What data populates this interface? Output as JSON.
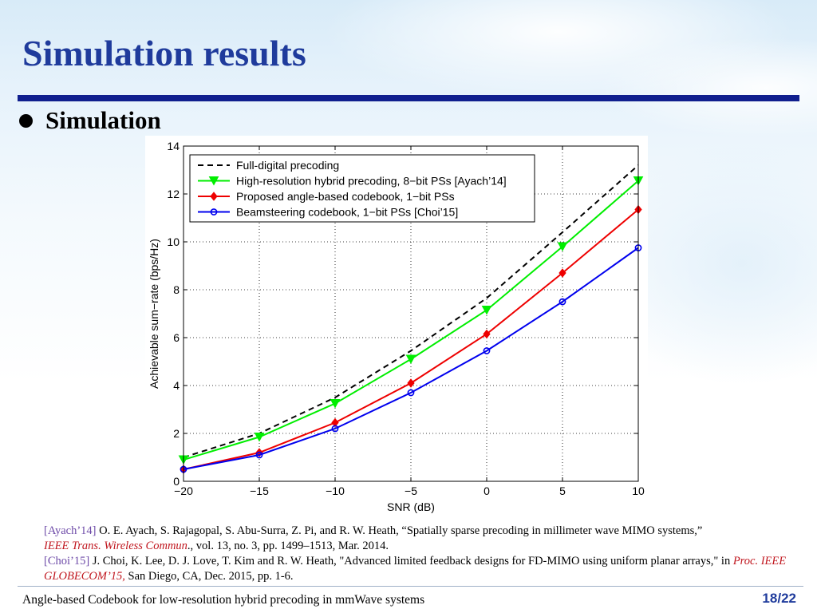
{
  "slide": {
    "title": "Simulation results",
    "bullet": "Simulation",
    "footer": "Angle-based Codebook for low-resolution hybrid precoding in mmWave systems",
    "page_current": "18",
    "page_sep": "/",
    "page_total": "22",
    "accent_color": "#1f3b9c"
  },
  "references": [
    {
      "tag": "[Ayach’14]",
      "text": " O. E. Ayach, S. Rajagopal, S. Abu-Surra, Z. Pi, and R. W. Heath, “Spatially sparse precoding in millimeter wave MIMO systems,”",
      "venue": "IEEE Trans. Wireless Commun",
      "after": "., vol. 13, no. 3, pp. 1499–1513, Mar. 2014."
    },
    {
      "tag": "[Choi’15]",
      "text": " J. Choi, K. Lee, D. J. Love, T. Kim and R. W. Heath, \"Advanced limited feedback designs for FD-MIMO using uniform  planar arrays,\" in ",
      "venue": "Proc. IEEE GLOBECOM’15,",
      "after": " San Diego, CA, Dec. 2015, pp. 1-6."
    }
  ],
  "chart_data": {
    "type": "line",
    "xlabel": "SNR (dB)",
    "ylabel": "Achievable sum−rate (bps/Hz)",
    "xlim": [
      -20,
      10
    ],
    "ylim": [
      0,
      14
    ],
    "xticks": [
      -20,
      -15,
      -10,
      -5,
      0,
      5,
      10
    ],
    "xtick_labels": [
      "−20",
      "−15",
      "−10",
      "−5",
      "0",
      "5",
      "10"
    ],
    "yticks": [
      0,
      2,
      4,
      6,
      8,
      10,
      12,
      14
    ],
    "grid": true,
    "legend_position": "top-left",
    "x": [
      -20,
      -15,
      -10,
      -5,
      0,
      5,
      10
    ],
    "series": [
      {
        "name": "Full-digital precoding",
        "color": "#000000",
        "dash": true,
        "marker": "none",
        "values": [
          1.0,
          2.0,
          3.5,
          5.45,
          7.65,
          10.4,
          13.2
        ]
      },
      {
        "name": "High-resolution hybrid precoding, 8−bit PSs [Ayach’14]",
        "color": "#00ee00",
        "dash": false,
        "marker": "triangle-down",
        "values": [
          0.9,
          1.85,
          3.25,
          5.1,
          7.15,
          9.8,
          12.55
        ]
      },
      {
        "name": "Proposed angle-based codebook, 1−bit PSs",
        "color": "#ee0000",
        "dash": false,
        "marker": "diamond",
        "values": [
          0.5,
          1.2,
          2.45,
          4.1,
          6.15,
          8.7,
          11.35
        ]
      },
      {
        "name": "Beamsteering codebook, 1−bit PSs  [Choi’15]",
        "color": "#0000ee",
        "dash": false,
        "marker": "circle",
        "values": [
          0.5,
          1.1,
          2.2,
          3.7,
          5.45,
          7.5,
          9.75
        ]
      }
    ]
  }
}
